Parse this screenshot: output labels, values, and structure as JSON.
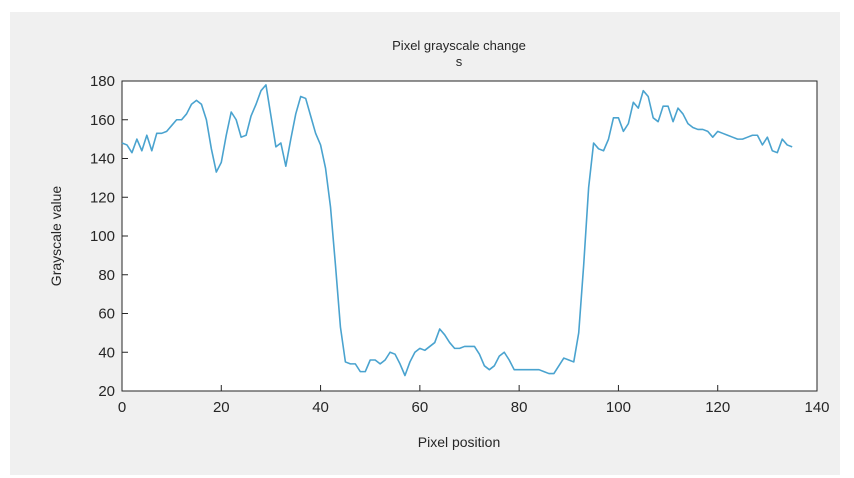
{
  "chart_data": {
    "type": "line",
    "title": "Pixel grayscale change",
    "subtitle": "s",
    "xlabel": "Pixel position",
    "ylabel": "Grayscale value",
    "xlim": [
      0,
      140
    ],
    "ylim": [
      20,
      180
    ],
    "x_ticks": [
      0,
      20,
      40,
      60,
      80,
      100,
      120,
      140
    ],
    "y_ticks": [
      20,
      40,
      60,
      80,
      100,
      120,
      140,
      160,
      180
    ],
    "grid": false,
    "line_color": "#4aa3cf",
    "series": [
      {
        "x": [
          0,
          1,
          2,
          3,
          4,
          5,
          6,
          7,
          8,
          9,
          10,
          11,
          12,
          13,
          14,
          15,
          16,
          17,
          18,
          19,
          20,
          21,
          22,
          23,
          24,
          25,
          26,
          27,
          28,
          29,
          30,
          31,
          32,
          33,
          34,
          35,
          36,
          37,
          38,
          39,
          40,
          41,
          42,
          43,
          44,
          45,
          46,
          47,
          48,
          49,
          50,
          51,
          52,
          53,
          54,
          55,
          56,
          57,
          58,
          59,
          60,
          61,
          62,
          63,
          64,
          65,
          66,
          67,
          68,
          69,
          70,
          71,
          72,
          73,
          74,
          75,
          76,
          77,
          78,
          79,
          80,
          81,
          82,
          83,
          84,
          85,
          86,
          87,
          88,
          89,
          90,
          91,
          92,
          93,
          94,
          95,
          96,
          97,
          98,
          99,
          100,
          101,
          102,
          103,
          104,
          105,
          106,
          107,
          108,
          109,
          110,
          111,
          112,
          113,
          114,
          115,
          116,
          117,
          118,
          119,
          120,
          121,
          122,
          123,
          124,
          125,
          126,
          127,
          128,
          129,
          130,
          131,
          132,
          133,
          134,
          135
        ],
        "values": [
          148,
          147,
          143,
          150,
          144,
          152,
          144,
          153,
          153,
          154,
          157,
          160,
          160,
          163,
          168,
          170,
          168,
          160,
          145,
          133,
          138,
          152,
          164,
          160,
          151,
          152,
          162,
          168,
          175,
          178,
          162,
          146,
          148,
          136,
          150,
          163,
          172,
          171,
          162,
          153,
          147,
          135,
          115,
          85,
          53,
          35,
          34,
          34,
          30,
          30,
          36,
          36,
          34,
          36,
          40,
          39,
          34,
          28,
          35,
          40,
          42,
          41,
          43,
          45,
          52,
          49,
          45,
          42,
          42,
          43,
          43,
          43,
          39,
          33,
          31,
          33,
          38,
          40,
          36,
          31,
          31,
          31,
          31,
          31,
          31,
          30,
          29,
          29,
          33,
          37,
          36,
          35,
          50,
          85,
          125,
          148,
          145,
          144,
          150,
          161,
          161,
          154,
          158,
          169,
          166,
          175,
          172,
          161,
          159,
          167,
          167,
          159,
          166,
          163,
          158,
          156,
          155,
          155,
          154,
          151,
          154,
          153,
          152,
          151,
          150,
          150,
          151,
          152,
          152,
          147,
          151,
          144,
          143,
          150,
          147,
          146
        ]
      }
    ]
  }
}
